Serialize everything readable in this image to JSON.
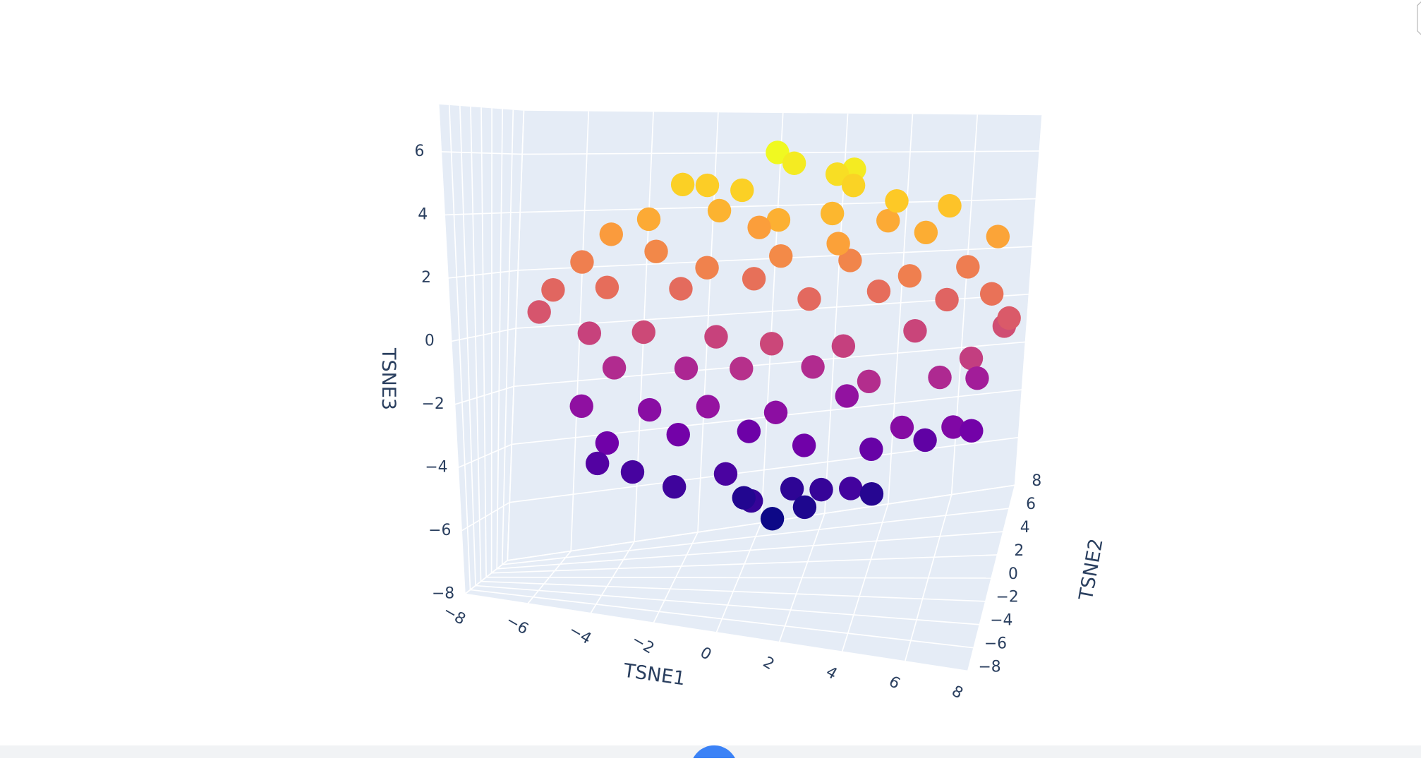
{
  "chart_data": {
    "type": "scatter3d",
    "x_title": "TSNE1",
    "y_title": "TSNE2",
    "z_title": "TSNE3",
    "xlim": [
      -8,
      8
    ],
    "ylim": [
      -8,
      8
    ],
    "zlim": [
      -8,
      7.5
    ],
    "xticks": [
      {
        "value": -8,
        "label": "−8"
      },
      {
        "value": -6,
        "label": "−6"
      },
      {
        "value": -4,
        "label": "−4"
      },
      {
        "value": -2,
        "label": "−2"
      },
      0,
      2,
      4,
      6,
      8
    ],
    "yticks": [
      {
        "value": -8,
        "label": "−8"
      },
      {
        "value": -6,
        "label": "−6"
      },
      {
        "value": -4,
        "label": "−4"
      },
      {
        "value": -2,
        "label": "−2"
      },
      0,
      2,
      4,
      6,
      8
    ],
    "zticks": [
      {
        "value": -8,
        "label": "−8"
      },
      {
        "value": -6,
        "label": "−6"
      },
      {
        "value": -4,
        "label": "−4"
      },
      {
        "value": -2,
        "label": "−2"
      },
      0,
      2,
      4,
      6
    ],
    "grid": true,
    "colorscale": [
      "#0d0887",
      "#46039f",
      "#7201a8",
      "#9c179e",
      "#bd3786",
      "#d8576b",
      "#ed7953",
      "#fb9f3a",
      "#fdca26",
      "#f0f921"
    ],
    "x": [
      -5,
      -3,
      -1,
      1,
      3,
      5,
      6.5,
      7,
      -4,
      -2,
      0,
      2,
      4,
      5.5,
      -4.5,
      -3.5,
      -2,
      -0.5,
      0.5,
      1.5,
      2.5,
      3.5,
      4,
      1,
      2,
      0,
      -6.3,
      -5,
      -3,
      -1,
      1,
      3,
      5,
      7,
      7.8,
      -4,
      -2,
      0,
      2,
      4,
      6,
      7,
      -5,
      -3,
      -1,
      1,
      3,
      5,
      6.5,
      7.5,
      -6,
      -4,
      -2,
      0,
      2,
      4,
      6,
      8,
      -3,
      -1,
      1,
      2.5,
      4,
      5.5,
      7.5,
      -4,
      0,
      3,
      0.8,
      1.2,
      3.2,
      2.4,
      -2,
      -1.5,
      0,
      3,
      4.5,
      6
    ],
    "y": [
      0,
      1,
      -1,
      0,
      2,
      -1,
      0,
      1,
      -2,
      0,
      2,
      -1,
      0,
      2,
      0,
      1,
      -1,
      0,
      -2,
      1,
      0,
      -1,
      1,
      0,
      0,
      1,
      0,
      2,
      -1,
      1,
      -2,
      0,
      2,
      -1,
      1,
      0,
      2,
      -1,
      1,
      -2,
      0,
      2,
      0,
      2,
      -2,
      0,
      1,
      -1,
      2,
      -1,
      1,
      -2,
      0,
      2,
      -1,
      0,
      1,
      0,
      0,
      1,
      -1,
      0,
      2,
      -2,
      0,
      -1,
      3,
      -3,
      0,
      1,
      -1,
      2,
      0,
      2,
      -2,
      1,
      -1,
      0
    ],
    "z": [
      -2.3,
      -2.5,
      -2.1,
      -2.4,
      -2.2,
      -2.6,
      -2.8,
      -3.2,
      -3.3,
      -3.2,
      -3.4,
      -3.3,
      -3.6,
      -3.8,
      -4.2,
      -4.6,
      -4.8,
      -4.5,
      -5,
      -5.2,
      -5,
      -4.7,
      -5.4,
      -6,
      -5.6,
      -5.5,
      0.8,
      0,
      0.3,
      0,
      0.2,
      -0.1,
      0.1,
      -0.2,
      0.5,
      -1,
      -1.2,
      -0.8,
      -1,
      -0.9,
      -1.1,
      -1.6,
      2.5,
      2.8,
      2.6,
      2.9,
      2.7,
      2.5,
      2.4,
      2,
      1.5,
      1.8,
      1.7,
      1.9,
      1.6,
      1.8,
      1.4,
      1,
      4,
      4.3,
      4.2,
      4.4,
      4,
      4.1,
      3.8,
      3.5,
      3.6,
      3.7,
      6.4,
      6,
      6,
      5.6,
      5.2,
      5.1,
      5.2,
      5.3,
      5,
      4.8
    ]
  }
}
